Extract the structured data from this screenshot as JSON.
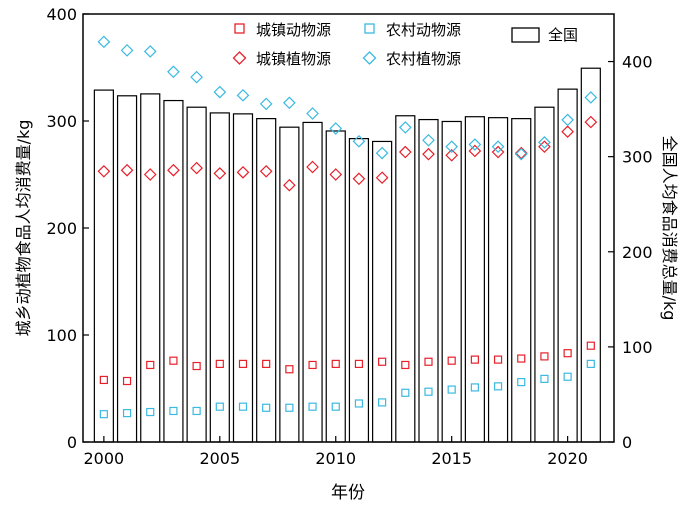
{
  "chart_data": {
    "type": "bar",
    "x": [
      2000,
      2001,
      2002,
      2003,
      2004,
      2005,
      2006,
      2007,
      2008,
      2009,
      2010,
      2011,
      2012,
      2013,
      2014,
      2015,
      2016,
      2017,
      2018,
      2019,
      2020,
      2021
    ],
    "xlabel": "年份",
    "ylabel_left": "城乡动植物食品人均消费量/kg",
    "ylabel_right": "全国人均食品消费总量/kg",
    "ylim_left": [
      0,
      400
    ],
    "ylim_right": [
      0,
      450
    ],
    "xlim": [
      1999.1,
      2022.0
    ],
    "x_ticks": [
      2000,
      2005,
      2010,
      2015,
      2020
    ],
    "y_ticks_left": [
      0,
      100,
      200,
      300,
      400
    ],
    "y_ticks_right": [
      0,
      100,
      200,
      300,
      400
    ],
    "grid": false,
    "legend_position": "top",
    "bars": {
      "name": "全国",
      "axis": "right",
      "values": [
        370,
        364,
        366,
        359,
        352,
        346,
        345,
        340,
        331,
        336,
        327,
        319,
        316,
        343,
        339,
        337,
        342,
        341,
        340,
        352,
        371,
        393
      ]
    },
    "series": [
      {
        "name": "城镇动物源",
        "axis": "left",
        "marker": "square",
        "color": "#e8202a",
        "values": [
          58,
          57,
          72,
          76,
          71,
          73,
          73,
          73,
          68,
          72,
          73,
          73,
          75,
          72,
          75,
          76,
          77,
          77,
          78,
          80,
          83,
          90
        ]
      },
      {
        "name": "农村动物源",
        "axis": "left",
        "marker": "square",
        "color": "#3bb9e1",
        "values": [
          26,
          27,
          28,
          29,
          29,
          33,
          33,
          32,
          32,
          33,
          33,
          36,
          37,
          46,
          47,
          49,
          51,
          52,
          56,
          59,
          61,
          73
        ]
      },
      {
        "name": "城镇植物源",
        "axis": "left",
        "marker": "diamond",
        "color": "#e8202a",
        "values": [
          253,
          254,
          250,
          254,
          256,
          251,
          252,
          253,
          240,
          257,
          250,
          246,
          247,
          271,
          269,
          268,
          272,
          271,
          270,
          276,
          290,
          299
        ]
      },
      {
        "name": "农村植物源",
        "axis": "left",
        "marker": "diamond",
        "color": "#3bb9e1",
        "values": [
          374,
          366,
          365,
          346,
          341,
          327,
          324,
          316,
          317,
          307,
          293,
          281,
          270,
          294,
          282,
          276,
          278,
          276,
          269,
          280,
          301,
          322
        ]
      }
    ]
  }
}
